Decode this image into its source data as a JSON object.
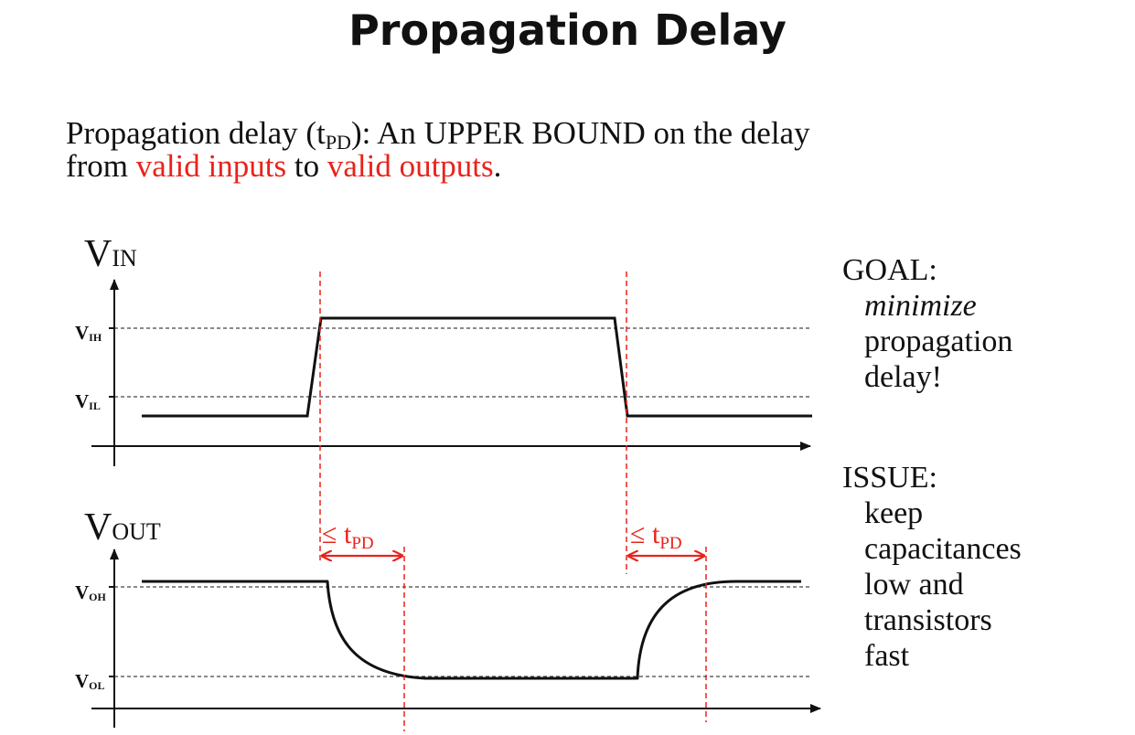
{
  "slide": {
    "title": "Propagation Delay",
    "definition": {
      "part1": "Propagation delay (t",
      "sub": "PD",
      "part2": "):  An UPPER BOUND on the delay",
      "part3": "from ",
      "red1": "valid inputs",
      "part4": " to ",
      "red2": "valid outputs",
      "part5": "."
    }
  },
  "diagram": {
    "vin_label": "V",
    "vin_sub": "IN",
    "vout_label": "V",
    "vout_sub": "OUT",
    "vih_label": "V",
    "vih_sub": "IH",
    "vil_label": "V",
    "vil_sub": "IL",
    "voh_label": "V",
    "voh_sub": "OH",
    "vol_label": "V",
    "vol_sub": "OL",
    "tpd_prefix": "≤ t",
    "tpd_sub": "PD",
    "colors": {
      "signal": "#111111",
      "delay": "#e8231b",
      "threshold": "#444444"
    }
  },
  "sidebar": {
    "goal_heading": "GOAL:",
    "goal_lines": [
      "minimize",
      "propagation",
      "delay!"
    ],
    "issue_heading": "ISSUE:",
    "issue_lines": [
      "keep",
      "capacitances",
      "low and",
      "transistors",
      "fast"
    ]
  }
}
